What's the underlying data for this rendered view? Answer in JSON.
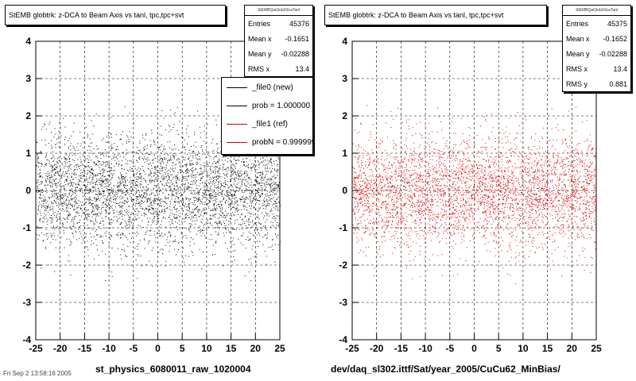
{
  "chart_data": [
    {
      "type": "scatter",
      "title": "StEMB globtrk: z-DCA to Beam Axis vs tanl, tpc,tpc+svt",
      "xlabel": "st_physics_6080011_raw_1020004",
      "ylabel": "",
      "xlim": [
        -25,
        25
      ],
      "ylim": [
        -4,
        4
      ],
      "xticks": [
        "-25",
        "-20",
        "-15",
        "-10",
        "-5",
        "0",
        "5",
        "10",
        "15",
        "20",
        "25"
      ],
      "yticks": [
        "-4",
        "-3",
        "-2",
        "-1",
        "0",
        "1",
        "2",
        "3",
        "4"
      ],
      "grid": true,
      "color": "#000000",
      "stats": {
        "name": "StEMBQaGlobZdcaTanl",
        "rows": [
          {
            "label": "Entries",
            "value": "45376"
          },
          {
            "label": "Mean x",
            "value": "-0.1651"
          },
          {
            "label": "Mean y",
            "value": "-0.02288"
          },
          {
            "label": "RMS x",
            "value": "13.4"
          }
        ]
      },
      "legend": [
        {
          "label": "_file0 (new)",
          "color": "#000000"
        },
        {
          "label": "prob = 1.000000",
          "color": "#000000"
        },
        {
          "label": "_file1 (ref)",
          "color": "#cc0000"
        },
        {
          "label": "probN = 0.999999",
          "color": "#cc0000"
        }
      ]
    },
    {
      "type": "scatter",
      "title": "StEMB globtrk: z-DCA to Beam Axis vs tanl, tpc,tpc+svt",
      "xlabel": "dev/daq_sl302.ittf/Sat/year_2005/CuCu62_MinBias/",
      "ylabel": "",
      "xlim": [
        -25,
        25
      ],
      "ylim": [
        -4,
        4
      ],
      "xticks": [
        "-25",
        "-20",
        "-15",
        "-10",
        "-5",
        "0",
        "5",
        "10",
        "15",
        "20",
        "25"
      ],
      "yticks": [
        "-4",
        "-3",
        "-2",
        "-1",
        "0",
        "1",
        "2",
        "3",
        "4"
      ],
      "grid": true,
      "color": "#dd0000",
      "stats": {
        "name": "StEMBQaGlobZdcaTanl",
        "rows": [
          {
            "label": "Entries",
            "value": "45375"
          },
          {
            "label": "Mean x",
            "value": "-0.1652"
          },
          {
            "label": "Mean y",
            "value": "-0.02288"
          },
          {
            "label": "RMS x",
            "value": "13.4"
          },
          {
            "label": "RMS y",
            "value": "0.881"
          }
        ]
      }
    }
  ],
  "footer_text": "Fri Sep 2 13:58:16 2005"
}
